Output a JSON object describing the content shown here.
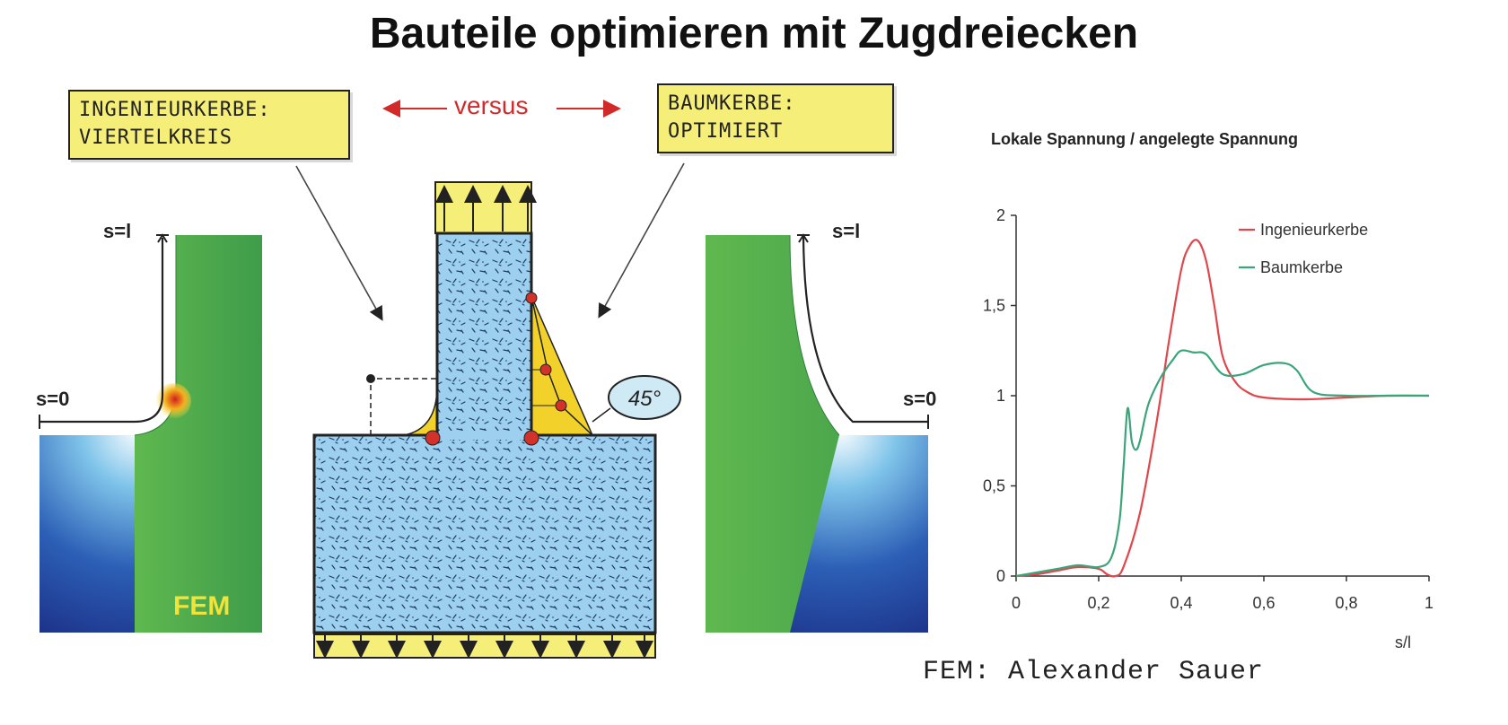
{
  "title": "Bauteile optimieren mit Zugdreiecken",
  "left_note": {
    "line1": "INGENIEURKERBE:",
    "line2": "VIERTELKREIS"
  },
  "right_note": {
    "line1": "BAUMKERBE:",
    "line2": "OPTIMIERT"
  },
  "versus_label": "versus",
  "angle_label": "45°",
  "left_panel": {
    "s_top": "s=l",
    "s_bottom": "s=0",
    "fem_label": "FEM"
  },
  "right_panel": {
    "s_top": "s=l",
    "s_bottom": "s=0"
  },
  "credit": "FEM: Alexander Sauer",
  "colors": {
    "ingenieur": "#e0474c",
    "baum": "#3aa57a",
    "note_fill": "#f5ef7a",
    "triangle_fill": "#f2d22a",
    "block_fill": "#8fc8e8",
    "fem_green": "#4aa850",
    "fem_blue": "#1c2f86",
    "arrow_red": "#d22a2a"
  },
  "chart_data": {
    "type": "line",
    "title": "Lokale Spannung / angelegte Spannung",
    "xlabel": "s/l",
    "ylabel": "",
    "xlim": [
      0,
      1
    ],
    "ylim": [
      0,
      2
    ],
    "x_ticks": [
      0,
      0.2,
      0.4,
      0.6,
      0.8,
      1
    ],
    "x_tick_labels": [
      "0",
      "0,2",
      "0,4",
      "0,6",
      "0,8",
      "1"
    ],
    "y_ticks": [
      0,
      0.5,
      1,
      1.5,
      2
    ],
    "y_tick_labels": [
      "0",
      "0,5",
      "1",
      "1,5",
      "2"
    ],
    "legend_position": "top-right",
    "series": [
      {
        "name": "Ingenieurkerbe",
        "color": "#e0474c",
        "x": [
          0,
          0.05,
          0.1,
          0.15,
          0.2,
          0.22,
          0.24,
          0.26,
          0.3,
          0.34,
          0.37,
          0.4,
          0.42,
          0.44,
          0.46,
          0.48,
          0.5,
          0.53,
          0.56,
          0.6,
          0.7,
          0.8,
          0.9,
          1
        ],
        "y": [
          0,
          0.01,
          0.03,
          0.05,
          0.04,
          0.01,
          0.0,
          0.05,
          0.35,
          0.85,
          1.3,
          1.7,
          1.83,
          1.86,
          1.75,
          1.5,
          1.22,
          1.08,
          1.02,
          0.99,
          0.98,
          0.99,
          1.0,
          1.0
        ]
      },
      {
        "name": "Baumkerbe",
        "color": "#3aa57a",
        "x": [
          0,
          0.05,
          0.1,
          0.15,
          0.2,
          0.23,
          0.25,
          0.26,
          0.27,
          0.28,
          0.29,
          0.3,
          0.32,
          0.35,
          0.38,
          0.4,
          0.43,
          0.46,
          0.5,
          0.55,
          0.6,
          0.65,
          0.68,
          0.72,
          0.8,
          0.9,
          1
        ],
        "y": [
          0,
          0.02,
          0.04,
          0.06,
          0.05,
          0.1,
          0.3,
          0.6,
          0.93,
          0.75,
          0.7,
          0.75,
          0.95,
          1.1,
          1.2,
          1.25,
          1.24,
          1.23,
          1.12,
          1.12,
          1.17,
          1.18,
          1.14,
          1.02,
          1.0,
          1.0,
          1.0
        ]
      }
    ]
  }
}
